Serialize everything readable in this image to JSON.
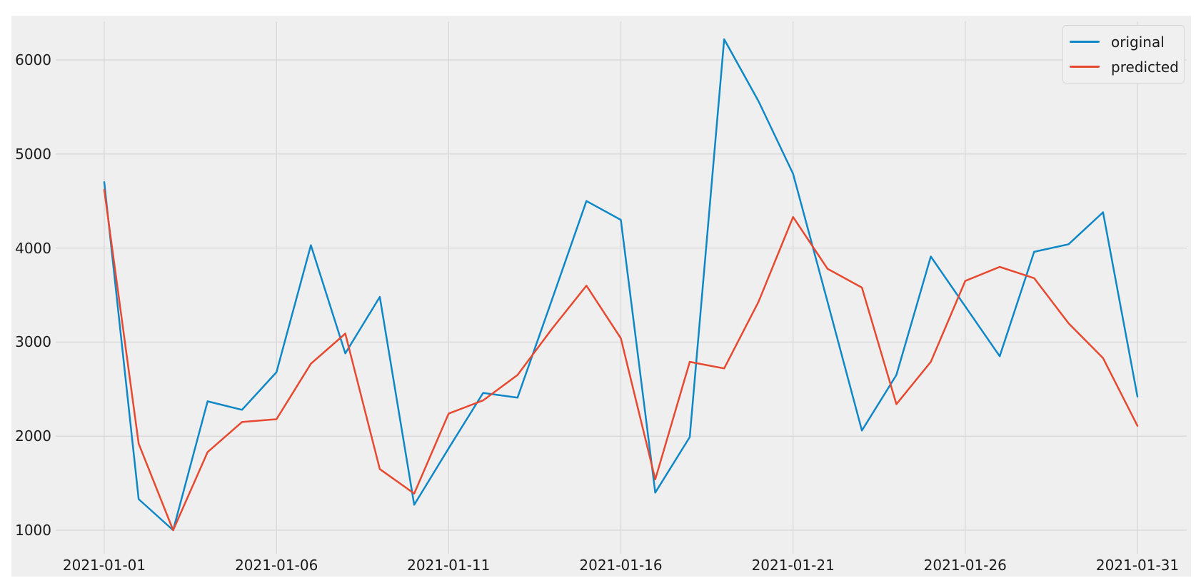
{
  "colors": {
    "figure_background": "#efefef",
    "grid": "#d8d8d8",
    "tick_text": "#1a1a1a",
    "legend_background": "#f1f0f0",
    "legend_border": "#d6d5d5",
    "original_line": "#0e87c6",
    "predicted_line": "#e6492f"
  },
  "legend": {
    "position": "top-right",
    "items": [
      "original",
      "predicted"
    ]
  },
  "chart_data": {
    "type": "line",
    "title": "",
    "xlabel": "",
    "ylabel": "",
    "grid": true,
    "x": [
      "2021-01-01",
      "2021-01-02",
      "2021-01-03",
      "2021-01-04",
      "2021-01-05",
      "2021-01-06",
      "2021-01-07",
      "2021-01-08",
      "2021-01-09",
      "2021-01-10",
      "2021-01-11",
      "2021-01-12",
      "2021-01-13",
      "2021-01-14",
      "2021-01-15",
      "2021-01-16",
      "2021-01-17",
      "2021-01-18",
      "2021-01-19",
      "2021-01-20",
      "2021-01-21",
      "2021-01-22",
      "2021-01-23",
      "2021-01-24",
      "2021-01-25",
      "2021-01-26",
      "2021-01-27",
      "2021-01-28",
      "2021-01-29",
      "2021-01-30",
      "2021-01-31"
    ],
    "x_tick_labels": [
      "2021-01-01",
      "2021-01-06",
      "2021-01-11",
      "2021-01-16",
      "2021-01-21",
      "2021-01-26",
      "2021-01-31"
    ],
    "x_tick_indices": [
      0,
      5,
      10,
      15,
      20,
      25,
      30
    ],
    "y_ticks": [
      1000,
      2000,
      3000,
      4000,
      5000,
      6000
    ],
    "ylim": [
      750,
      6410
    ],
    "series": [
      {
        "name": "original",
        "color": "#0e87c6",
        "values": [
          4700,
          1330,
          1000,
          2370,
          2280,
          2680,
          4030,
          2880,
          3480,
          1270,
          1870,
          2460,
          2410,
          3450,
          4500,
          4300,
          1400,
          1990,
          6220,
          5560,
          4790,
          3430,
          2060,
          2650,
          3910,
          3380,
          2850,
          3960,
          4040,
          4380,
          2420
        ]
      },
      {
        "name": "predicted",
        "color": "#e6492f",
        "values": [
          4620,
          1920,
          1000,
          1830,
          2150,
          2180,
          2770,
          3090,
          1650,
          1390,
          2240,
          2380,
          2650,
          3140,
          3600,
          3040,
          1540,
          2790,
          2720,
          3430,
          4330,
          3780,
          3580,
          2340,
          2790,
          3650,
          3800,
          3680,
          3200,
          2830,
          2110
        ]
      }
    ]
  }
}
